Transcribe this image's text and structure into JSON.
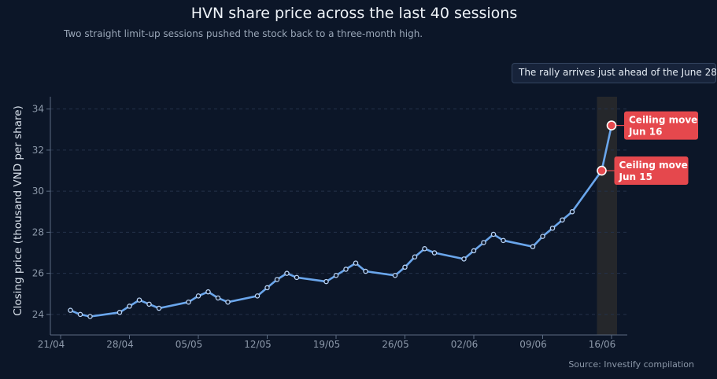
{
  "header": {
    "title": "HVN share price across the last 40 sessions",
    "subtitle": "Two straight limit-up sessions pushed the stock back to a three-month high."
  },
  "callout": {
    "text": "The rally arrives just ahead of the June 28"
  },
  "footer": {
    "source": "Source: Investify compilation"
  },
  "chart_data": {
    "type": "line",
    "ylabel": "Closing price (thousand VND per share)",
    "xlim": [
      "2025-04-21",
      "2025-06-16"
    ],
    "ylim": [
      23,
      34.6
    ],
    "x_ticks": [
      "21/04",
      "28/04",
      "05/05",
      "12/05",
      "19/05",
      "26/05",
      "02/06",
      "09/06",
      "16/06"
    ],
    "y_ticks": [
      24,
      26,
      28,
      30,
      32,
      34
    ],
    "grid": true,
    "line_color": "#6aa6ec",
    "highlight_color": "#e5484d",
    "highlight_band": [
      "2025-06-15",
      "2025-06-16"
    ],
    "series": [
      {
        "points": [
          {
            "x": "2025-04-22",
            "y": 24.2
          },
          {
            "x": "2025-04-23",
            "y": 24.0
          },
          {
            "x": "2025-04-24",
            "y": 23.9
          },
          {
            "x": "2025-04-27",
            "y": 24.1
          },
          {
            "x": "2025-04-28",
            "y": 24.4
          },
          {
            "x": "2025-04-29",
            "y": 24.7
          },
          {
            "x": "2025-04-30",
            "y": 24.5
          },
          {
            "x": "2025-05-01",
            "y": 24.3
          },
          {
            "x": "2025-05-04",
            "y": 24.6
          },
          {
            "x": "2025-05-05",
            "y": 24.9
          },
          {
            "x": "2025-05-06",
            "y": 25.1
          },
          {
            "x": "2025-05-07",
            "y": 24.8
          },
          {
            "x": "2025-05-08",
            "y": 24.6
          },
          {
            "x": "2025-05-11",
            "y": 24.9
          },
          {
            "x": "2025-05-12",
            "y": 25.3
          },
          {
            "x": "2025-05-13",
            "y": 25.7
          },
          {
            "x": "2025-05-14",
            "y": 26.0
          },
          {
            "x": "2025-05-15",
            "y": 25.8
          },
          {
            "x": "2025-05-18",
            "y": 25.6
          },
          {
            "x": "2025-05-19",
            "y": 25.9
          },
          {
            "x": "2025-05-20",
            "y": 26.2
          },
          {
            "x": "2025-05-21",
            "y": 26.5
          },
          {
            "x": "2025-05-22",
            "y": 26.1
          },
          {
            "x": "2025-05-25",
            "y": 25.9
          },
          {
            "x": "2025-05-26",
            "y": 26.3
          },
          {
            "x": "2025-05-27",
            "y": 26.8
          },
          {
            "x": "2025-05-28",
            "y": 27.2
          },
          {
            "x": "2025-05-29",
            "y": 27.0
          },
          {
            "x": "2025-06-01",
            "y": 26.7
          },
          {
            "x": "2025-06-02",
            "y": 27.1
          },
          {
            "x": "2025-06-03",
            "y": 27.5
          },
          {
            "x": "2025-06-04",
            "y": 27.9
          },
          {
            "x": "2025-06-05",
            "y": 27.6
          },
          {
            "x": "2025-06-08",
            "y": 27.3
          },
          {
            "x": "2025-06-09",
            "y": 27.8
          },
          {
            "x": "2025-06-10",
            "y": 28.2
          },
          {
            "x": "2025-06-11",
            "y": 28.6
          },
          {
            "x": "2025-06-12",
            "y": 29.0
          },
          {
            "x": "2025-06-15",
            "y": 31.0
          },
          {
            "x": "2025-06-16",
            "y": 33.2
          }
        ]
      }
    ],
    "annotations": [
      {
        "x": "2025-06-15",
        "y": 31.0,
        "line1": "Ceiling move",
        "line2": "Jun 15"
      },
      {
        "x": "2025-06-16",
        "y": 33.2,
        "line1": "Ceiling move",
        "line2": "Jun 16"
      }
    ]
  }
}
